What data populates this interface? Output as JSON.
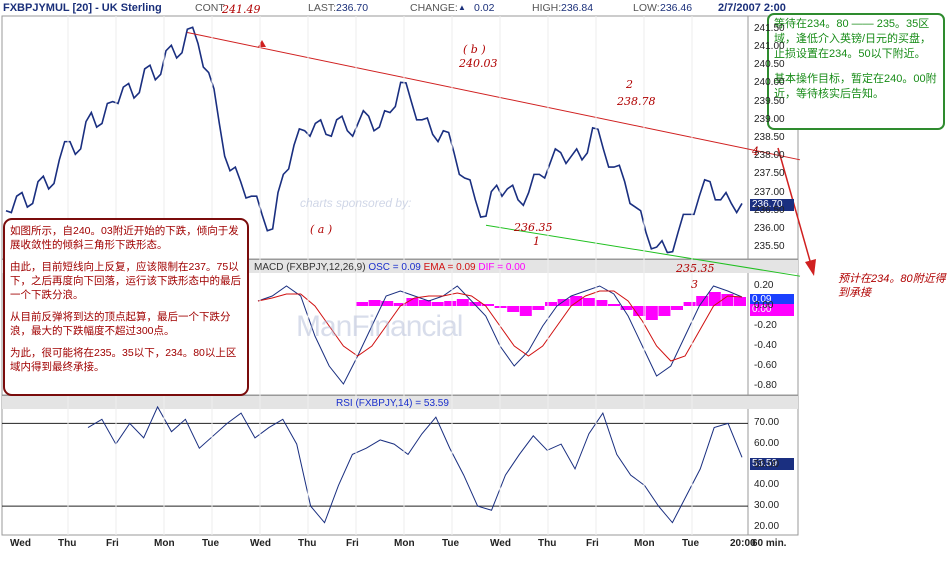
{
  "header": {
    "ticker": "FXBPJYMUL [20] - UK Sterling",
    "cont_label": "CONT",
    "last_label": "LAST:",
    "last_value": "236.70",
    "change_label": "CHANGE:",
    "change_arrow": "▲",
    "change_value": "0.02",
    "high_label": "HIGH:",
    "high_value": "236.84",
    "low_label": "LOW:",
    "low_value": "236.46",
    "date": "2/7/2007 2:00"
  },
  "notes": {
    "left": [
      "如图所示，自240。03附近开始的下跌，倾向于发展收敛性的倾斜三角形下跌形态。",
      "由此，目前短线向上反复，应该限制在237。75以下，之后再度向下回落，运行该下跌形态中的最后一个下跌分浪。",
      "从目前反弹将到达的顶点起算，最后一个下跌分浪，最大的下跌幅度不超过300点。",
      "为此，很可能将在235。35以下，234。80以上区域内得到最终承接。"
    ],
    "right": [
      "等待在234。80 —— 235。35区域，逢低介入英镑/日元的买盘，止损设置在234。50以下附近。",
      "基本操作目标，暂定在240。00附近，等待核实后告知。"
    ],
    "forecast": "预计在234。80附近得到承接"
  },
  "watermark": {
    "sponsor": "charts sponsored by:",
    "brand": "ManFinancial"
  },
  "annotations": {
    "peak": "241.49",
    "a_label": "( a )",
    "b_label": "( b )",
    "b_value": "240.03",
    "w1_value": "236.35",
    "w1_label": "1",
    "w2_label": "2",
    "w2_value": "238.78",
    "w3_value": "235.35",
    "w3_label": "3",
    "w4_label": "4"
  },
  "macd_title": {
    "prefix": "MACD (FXBPJY,12,26,9)",
    "osc": "OSC = 0.09",
    "ema": "EMA = 0.09",
    "dif": "DIF = 0.00"
  },
  "rsi_title": "RSI (FXBPJY,14) = 53.59",
  "price_tag": "236.70",
  "macd_tags": [
    "0.09",
    "0.00"
  ],
  "rsi_tag": "53.59",
  "colors": {
    "price": "#1a2f80",
    "macd_line": "#1a2f80",
    "signal_line": "#d01010",
    "histogram": "#ff00ff",
    "resistance": "#d02020",
    "support": "#20c020",
    "note_border": "#7a0c0c",
    "side_border": "#2e8b2e"
  },
  "chart_data": [
    {
      "type": "line",
      "series": [
        {
          "values": [
            236.5,
            236.9,
            236.6,
            237.3,
            237.1,
            237.9,
            238.4,
            238.2,
            239.2,
            238.9,
            239.5,
            239.9,
            239.6,
            240.4,
            240.1,
            240.9,
            240.7,
            241.49,
            241.1,
            240.3,
            238.9,
            237.6,
            237.3,
            236.9,
            236.4,
            236.0,
            237.5,
            238.3,
            238.7,
            238.9,
            238.6,
            239.0,
            238.7,
            238.9,
            239.1,
            238.8,
            239.2,
            240.03,
            239.5,
            239.0,
            238.6,
            238.7,
            238.1,
            237.4,
            236.8,
            236.35,
            237.2,
            237.1,
            236.8,
            237.0,
            237.5,
            237.8,
            238.1,
            238.0,
            237.9,
            238.78,
            238.2,
            237.7,
            237.3,
            236.6,
            235.9,
            235.5,
            235.35,
            235.9,
            236.4,
            236.9,
            237.3,
            236.8,
            236.7,
            236.7
          ]
        }
      ],
      "x_ticks": [
        "Wed",
        "Thu",
        "Fri",
        "Mon",
        "Tue",
        "Wed",
        "Thu",
        "Fri",
        "Mon",
        "Tue",
        "Wed",
        "Thu",
        "Fri",
        "Mon",
        "Tue",
        "20:00"
      ],
      "x_unit": "60 min.",
      "y_ticks": [
        235.5,
        236.0,
        236.5,
        237.0,
        237.5,
        238.0,
        238.5,
        239.0,
        239.5,
        240.0,
        240.5,
        241.0,
        241.5
      ],
      "ylim": [
        235.2,
        241.8
      ]
    },
    {
      "type": "line",
      "series": [
        {
          "values": [
            0.05,
            0.1,
            0.2,
            0.1,
            -0.3,
            -0.6,
            -0.78,
            -0.5,
            -0.2,
            0.1,
            0.15,
            0.1,
            0.05,
            0.1,
            0.2,
            0.05,
            -0.1,
            -0.4,
            -0.6,
            -0.45,
            -0.2,
            0.0,
            0.1,
            0.15,
            0.2,
            0.12,
            -0.1,
            -0.4,
            -0.7,
            -0.6,
            -0.3,
            0.0,
            0.2,
            0.15,
            0.09
          ]
        },
        {
          "values": [
            0.05,
            0.08,
            0.12,
            0.12,
            0.0,
            -0.2,
            -0.4,
            -0.5,
            -0.4,
            -0.2,
            0.0,
            0.08,
            0.1,
            0.1,
            0.13,
            0.1,
            0.0,
            -0.2,
            -0.4,
            -0.5,
            -0.4,
            -0.2,
            0.0,
            0.1,
            0.15,
            0.15,
            0.05,
            -0.15,
            -0.4,
            -0.55,
            -0.5,
            -0.25,
            0.0,
            0.1,
            0.09
          ]
        }
      ],
      "histogram": [
        0.04,
        0.06,
        0.05,
        0.03,
        0.08,
        0.06,
        0.04,
        0.05,
        0.07,
        0.04,
        0.02,
        -0.02,
        -0.06,
        -0.1,
        -0.04,
        0.04,
        0.07,
        0.1,
        0.08,
        0.06,
        0.02,
        -0.04,
        -0.1,
        -0.14,
        -0.1,
        -0.04,
        0.04,
        0.1,
        0.14,
        0.12,
        0.09
      ],
      "y_ticks": [
        -0.8,
        -0.6,
        -0.4,
        -0.2,
        0.0,
        0.2
      ],
      "ylim": [
        -0.88,
        0.3
      ]
    },
    {
      "type": "line",
      "series": [
        {
          "values": [
            68,
            72,
            60,
            70,
            63,
            78,
            66,
            72,
            58,
            64,
            70,
            75,
            63,
            68,
            72,
            60,
            30,
            22,
            40,
            55,
            58,
            62,
            60,
            55,
            65,
            73,
            58,
            45,
            30,
            28,
            45,
            55,
            64,
            57,
            60,
            48,
            65,
            75,
            55,
            45,
            40,
            30,
            22,
            35,
            48,
            68,
            70,
            53.59
          ]
        }
      ],
      "y_ticks": [
        20,
        30,
        40,
        50,
        60,
        70
      ],
      "ylim": [
        17,
        76
      ],
      "levels": [
        30,
        70
      ]
    }
  ]
}
